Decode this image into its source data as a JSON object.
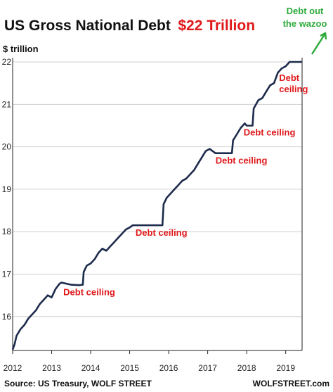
{
  "colors": {
    "series": "#1d2b4c",
    "title_highlight": "#e0191b",
    "annotation": "#e0191b",
    "annotation_callout": "#2eab3c",
    "gridline": "#cfcfcf"
  },
  "chart_data": {
    "type": "line",
    "title": "US Gross National Debt",
    "title_highlight": "$22 Trillion",
    "ylabel": "$ trillion",
    "xlabel": "",
    "xlim": [
      2012,
      2019.42
    ],
    "ylim": [
      15.2,
      22.1
    ],
    "x_ticks": [
      "2012",
      "2013",
      "2014",
      "2015",
      "2016",
      "2017",
      "2018",
      "2019"
    ],
    "y_ticks": [
      "16",
      "17",
      "18",
      "19",
      "20",
      "21",
      "22"
    ],
    "grid": "horizontal",
    "series": [
      {
        "x": [
          2012.0,
          2012.05,
          2012.1,
          2012.2,
          2012.3,
          2012.4,
          2012.5,
          2012.6,
          2012.7,
          2012.8,
          2012.9,
          2013.0,
          2013.1,
          2013.2,
          2013.25,
          2013.5,
          2013.7,
          2013.8,
          2013.82,
          2013.9,
          2014.0,
          2014.1,
          2014.2,
          2014.3,
          2014.4,
          2014.5,
          2014.6,
          2014.7,
          2014.8,
          2014.9,
          2015.0,
          2015.08,
          2015.3,
          2015.6,
          2015.84,
          2015.87,
          2015.95,
          2016.05,
          2016.15,
          2016.25,
          2016.35,
          2016.45,
          2016.55,
          2016.65,
          2016.75,
          2016.85,
          2016.95,
          2017.05,
          2017.2,
          2017.4,
          2017.62,
          2017.65,
          2017.75,
          2017.85,
          2017.95,
          2018.0,
          2018.05,
          2018.1,
          2018.15,
          2018.18,
          2018.3,
          2018.4,
          2018.5,
          2018.6,
          2018.7,
          2018.8,
          2018.9,
          2019.0,
          2019.05,
          2019.1,
          2019.42
        ],
        "values": [
          15.22,
          15.35,
          15.55,
          15.7,
          15.8,
          15.95,
          16.05,
          16.15,
          16.3,
          16.4,
          16.5,
          16.45,
          16.65,
          16.77,
          16.8,
          16.75,
          16.74,
          16.75,
          17.05,
          17.2,
          17.25,
          17.35,
          17.5,
          17.6,
          17.55,
          17.65,
          17.75,
          17.85,
          17.95,
          18.05,
          18.1,
          18.15,
          18.15,
          18.15,
          18.15,
          18.65,
          18.8,
          18.9,
          19.0,
          19.1,
          19.2,
          19.25,
          19.35,
          19.45,
          19.6,
          19.75,
          19.9,
          19.95,
          19.85,
          19.85,
          19.85,
          20.15,
          20.3,
          20.45,
          20.55,
          20.5,
          20.5,
          20.5,
          20.5,
          20.9,
          21.1,
          21.15,
          21.3,
          21.45,
          21.5,
          21.75,
          21.85,
          21.9,
          21.95,
          22.0,
          22.0
        ]
      }
    ],
    "annotations": [
      {
        "text": "Debt ceiling",
        "x": 2013.3,
        "y": 16.5
      },
      {
        "text": "Debt ceiling",
        "x": 2015.15,
        "y": 17.9
      },
      {
        "text": "Debt ceiling",
        "x": 2017.2,
        "y": 19.6
      },
      {
        "text": "Debt ceiling",
        "x": 2017.92,
        "y": 20.27
      },
      {
        "lines": [
          "Debt",
          "ceiling"
        ],
        "x": 2018.83,
        "y": 21.55
      }
    ],
    "callout": {
      "lines": [
        "Debt out",
        "the wazoo"
      ]
    }
  },
  "footer": {
    "source": "Source: US Treasury, WOLF STREET",
    "brand": "WOLFSTREET.com"
  }
}
